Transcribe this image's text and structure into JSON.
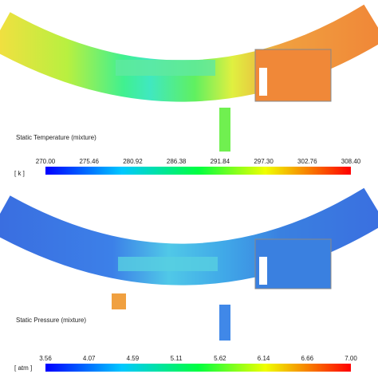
{
  "panels": [
    {
      "title": "Static Temperature (mixture)",
      "unit": "[ k ]",
      "ticks": [
        "270.00",
        "275.46",
        "280.92",
        "286.38",
        "291.84",
        "297.30",
        "302.76",
        "308.40"
      ]
    },
    {
      "title": "Static Pressure (mixture)",
      "unit": "[ atm ]",
      "ticks": [
        "3.56",
        "4.07",
        "4.59",
        "5.11",
        "5.62",
        "6.14",
        "6.66",
        "7.00"
      ]
    }
  ]
}
